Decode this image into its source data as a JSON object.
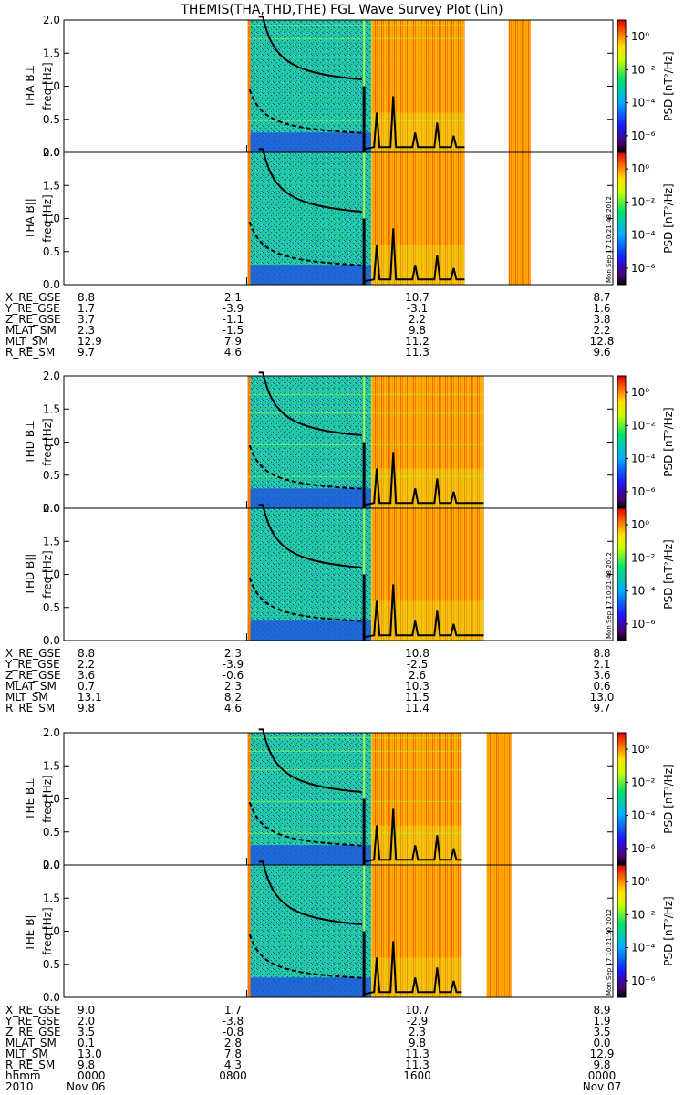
{
  "title": "THEMIS(THA,THD,THE) FGL Wave Survey Plot (Lin)",
  "chart_data": {
    "type": "heatmap",
    "title": "THEMIS(THA,THD,THE) FGL Wave Survey Plot (Lin)",
    "x_axis": {
      "label": "hhmm",
      "range": [
        "0000",
        "0000"
      ],
      "ticks": [
        "0000",
        "0800",
        "1600",
        "0000"
      ],
      "date_labels": [
        "2010",
        "Nov 06",
        "Nov 07"
      ]
    },
    "y_axis": {
      "label": "freq [Hz]",
      "range": [
        0.0,
        2.0
      ],
      "ticks": [
        "0.0",
        "0.5",
        "1.0",
        "1.5",
        "2.0"
      ]
    },
    "colorbar": {
      "label": "PSD [nT²/Hz]",
      "scale": "log",
      "range": [
        1e-07,
        10
      ],
      "ticks": [
        "10⁰",
        "10⁻²",
        "10⁻⁴",
        "10⁻⁶"
      ]
    },
    "panels": [
      {
        "probe": "THA",
        "ylabel": "THA B⊥",
        "stamp": "Mon Sep 17 10:21:48 2012"
      },
      {
        "probe": "THA",
        "ylabel": "THA B||",
        "stamp": "Mon Sep 17 10:21:48 2012"
      },
      {
        "probe": "THD",
        "ylabel": "THD B⊥",
        "stamp": "Mon Sep 17 10:21:48 2012"
      },
      {
        "probe": "THD",
        "ylabel": "THD B||",
        "stamp": "Mon Sep 17 10:21:48 2012"
      },
      {
        "probe": "THE",
        "ylabel": "THE B⊥",
        "stamp": "Mon Sep 17 10:21:50 2012"
      },
      {
        "probe": "THE",
        "ylabel": "THE B||",
        "stamp": "Mon Sep 17 10:21:50 2012"
      }
    ],
    "ephemeris": [
      {
        "probe": "THA",
        "rows": [
          {
            "name": "X_RE_GSE",
            "values": [
              "8.8",
              "2.1",
              "10.7",
              "8.7"
            ]
          },
          {
            "name": "Y_RE_GSE",
            "values": [
              "1.7",
              "-3.9",
              "-3.1",
              "1.6"
            ]
          },
          {
            "name": "Z_RE_GSE",
            "values": [
              "3.7",
              "-1.1",
              "2.2",
              "3.8"
            ]
          },
          {
            "name": "MLAT_SM",
            "values": [
              "2.3",
              "-1.5",
              "9.8",
              "2.2"
            ]
          },
          {
            "name": "MLT_SM",
            "values": [
              "12.9",
              "7.9",
              "11.2",
              "12.8"
            ]
          },
          {
            "name": "R_RE_SM",
            "values": [
              "9.7",
              "4.6",
              "11.3",
              "9.6"
            ]
          }
        ]
      },
      {
        "probe": "THD",
        "rows": [
          {
            "name": "X_RE_GSE",
            "values": [
              "8.8",
              "2.3",
              "10.8",
              "8.8"
            ]
          },
          {
            "name": "Y_RE_GSE",
            "values": [
              "2.2",
              "-3.9",
              "-2.5",
              "2.1"
            ]
          },
          {
            "name": "Z_RE_GSE",
            "values": [
              "3.6",
              "-0.6",
              "2.6",
              "3.6"
            ]
          },
          {
            "name": "MLAT_SM",
            "values": [
              "0.7",
              "2.3",
              "10.3",
              "0.6"
            ]
          },
          {
            "name": "MLT_SM",
            "values": [
              "13.1",
              "8.2",
              "11.5",
              "13.0"
            ]
          },
          {
            "name": "R_RE_SM",
            "values": [
              "9.8",
              "4.6",
              "11.4",
              "9.7"
            ]
          }
        ]
      },
      {
        "probe": "THE",
        "rows": [
          {
            "name": "X_RE_GSE",
            "values": [
              "9.0",
              "1.7",
              "10.7",
              "8.9"
            ]
          },
          {
            "name": "Y_RE_GSE",
            "values": [
              "2.0",
              "-3.8",
              "-2.9",
              "1.9"
            ]
          },
          {
            "name": "Z_RE_GSE",
            "values": [
              "3.5",
              "-0.8",
              "2.3",
              "3.5"
            ]
          },
          {
            "name": "MLAT_SM",
            "values": [
              "0.1",
              "2.8",
              "9.8",
              "0.0"
            ]
          },
          {
            "name": "MLT_SM",
            "values": [
              "13.0",
              "7.8",
              "11.3",
              "12.9"
            ]
          },
          {
            "name": "R_RE_SM",
            "values": [
              "9.8",
              "4.3",
              "11.3",
              "9.8"
            ]
          }
        ]
      }
    ]
  }
}
